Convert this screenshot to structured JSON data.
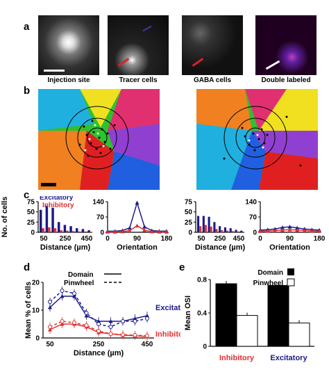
{
  "panels": {
    "a": "a",
    "b": "b",
    "c": "c",
    "d": "d",
    "e": "e"
  },
  "panel_a": {
    "captions": [
      "Injection site",
      "Tracer cells",
      "GABA cells",
      "Double labeled"
    ]
  },
  "chart_data": [
    {
      "id": "c-left-distance",
      "type": "bar",
      "ylabel": "No. of cells",
      "xlabel": "Distance (µm)",
      "ylim": [
        0,
        75
      ],
      "yticks": [
        "0",
        "25",
        "50",
        "75"
      ],
      "xticks": [
        "50",
        "250",
        "450"
      ],
      "legend": [
        "Excitatory",
        "Inhibitory"
      ],
      "categories": [
        "50",
        "100",
        "150",
        "200",
        "250",
        "300",
        "350",
        "400",
        "450"
      ],
      "series": [
        {
          "name": "Excitatory",
          "color": "#1a1a8c",
          "values": [
            55,
            65,
            60,
            25,
            18,
            15,
            10,
            8,
            5
          ]
        },
        {
          "name": "Inhibitory",
          "color": "#e03030",
          "values": [
            10,
            12,
            10,
            5,
            4,
            3,
            2,
            2,
            1
          ]
        }
      ]
    },
    {
      "id": "c-left-orientation",
      "type": "line",
      "xlabel": "Orientation",
      "ylim": [
        0,
        140
      ],
      "yticks": [
        "0",
        "70",
        "140"
      ],
      "xticks": [
        "0",
        "90",
        "180"
      ],
      "x": [
        0,
        22.5,
        45,
        67.5,
        90,
        112.5,
        135,
        157.5,
        180
      ],
      "series": [
        {
          "name": "Excitatory",
          "color": "#1a1a8c",
          "values": [
            5,
            5,
            8,
            20,
            135,
            25,
            8,
            5,
            5
          ]
        },
        {
          "name": "Inhibitory",
          "color": "#e03030",
          "values": [
            2,
            2,
            3,
            8,
            30,
            10,
            3,
            2,
            2
          ]
        }
      ]
    },
    {
      "id": "c-right-distance",
      "type": "bar",
      "ylim": [
        0,
        75
      ],
      "yticks": [
        "0",
        "25",
        "50",
        "75"
      ],
      "xticks": [
        "50",
        "250",
        "450"
      ],
      "xlabel": "Distance (µm)",
      "categories": [
        "50",
        "100",
        "150",
        "200",
        "250",
        "300",
        "350",
        "400",
        "450"
      ],
      "series": [
        {
          "name": "Excitatory",
          "color": "#1a1a8c",
          "values": [
            40,
            40,
            38,
            25,
            15,
            12,
            10,
            6,
            4
          ]
        },
        {
          "name": "Inhibitory",
          "color": "#e03030",
          "values": [
            15,
            18,
            14,
            8,
            5,
            4,
            3,
            2,
            1
          ]
        }
      ]
    },
    {
      "id": "c-right-orientation",
      "type": "line",
      "xlabel": "Orientation",
      "ylim": [
        0,
        140
      ],
      "yticks": [
        "0",
        "70",
        "140"
      ],
      "xticks": [
        "0",
        "90",
        "180"
      ],
      "x": [
        0,
        22.5,
        45,
        67.5,
        90,
        112.5,
        135,
        157.5,
        180
      ],
      "series": [
        {
          "name": "Excitatory",
          "color": "#1a1a8c",
          "values": [
            10,
            12,
            15,
            22,
            25,
            20,
            15,
            12,
            10
          ]
        },
        {
          "name": "Inhibitory",
          "color": "#e03030",
          "values": [
            5,
            6,
            8,
            10,
            12,
            10,
            8,
            6,
            5
          ]
        }
      ]
    },
    {
      "id": "d-mean-percent",
      "type": "line",
      "ylabel": "Mean % of cells",
      "xlabel": "Distance (µm)",
      "ylim": [
        0,
        20
      ],
      "yticks": [
        "0",
        "10",
        "20"
      ],
      "xticks": [
        "50",
        "250",
        "450"
      ],
      "legend": [
        "Domain",
        "Pinwheel"
      ],
      "x": [
        50,
        100,
        150,
        200,
        250,
        300,
        350,
        400,
        450
      ],
      "series": [
        {
          "name": "Excitatory",
          "style": "solid",
          "color": "#1a1a8c",
          "values": [
            11,
            15,
            15,
            8,
            6,
            6,
            6,
            7,
            8
          ]
        },
        {
          "name": "Excitatory",
          "style": "dashed",
          "color": "#1a1a8c",
          "values": [
            13,
            17,
            16,
            9,
            5,
            4,
            6,
            6,
            7
          ]
        },
        {
          "name": "Inhibitory",
          "style": "solid",
          "color": "#e03030",
          "values": [
            3,
            5,
            5,
            4,
            2,
            1.5,
            1,
            0.8,
            0.5
          ]
        },
        {
          "name": "Inhibitory",
          "style": "dashed",
          "color": "#e03030",
          "values": [
            4,
            6,
            5.5,
            4.5,
            2.5,
            1.5,
            1.2,
            1,
            0.8
          ]
        }
      ],
      "labels": {
        "excitatory": "Excitatory",
        "inhibitory": "Inhibitory"
      }
    },
    {
      "id": "e-mean-osi",
      "type": "bar",
      "ylabel": "Mean OSI",
      "ylim": [
        0,
        0.8
      ],
      "yticks": [
        "0",
        "0.4",
        "0.8"
      ],
      "categories": [
        "Inhibitory",
        "Excitatory"
      ],
      "legend": [
        "Domain",
        "Pinwheel"
      ],
      "series": [
        {
          "name": "Domain",
          "color": "#000000",
          "values": [
            0.75,
            0.73
          ]
        },
        {
          "name": "Pinwheel",
          "color": "#ffffff",
          "values": [
            0.37,
            0.28
          ]
        }
      ],
      "category_colors": [
        "#e03030",
        "#1a1a8c"
      ]
    }
  ]
}
